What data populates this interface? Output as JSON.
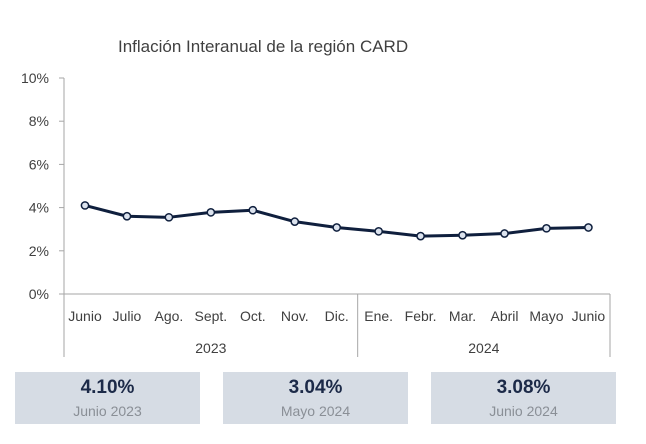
{
  "chart_data": {
    "type": "line",
    "title": "Inflación Interanual de la región CARD",
    "categories": [
      "Junio",
      "Julio",
      "Ago.",
      "Sept.",
      "Oct.",
      "Nov.",
      "Dic.",
      "Ene.",
      "Febr.",
      "Mar.",
      "Abril",
      "Mayo",
      "Junio"
    ],
    "groups": [
      {
        "label": "2023",
        "categories": [
          "Junio",
          "Julio",
          "Ago.",
          "Sept.",
          "Oct.",
          "Nov.",
          "Dic."
        ]
      },
      {
        "label": "2024",
        "categories": [
          "Ene.",
          "Febr.",
          "Mar.",
          "Abril",
          "Mayo",
          "Junio"
        ]
      }
    ],
    "series": [
      {
        "values": [
          4.1,
          3.6,
          3.55,
          3.78,
          3.88,
          3.35,
          3.08,
          2.9,
          2.68,
          2.72,
          2.8,
          3.04,
          3.08
        ]
      }
    ],
    "yticks": [
      "0%",
      "2%",
      "4%",
      "6%",
      "8%",
      "10%"
    ],
    "ylim": [
      0,
      10
    ],
    "grid": false,
    "line_color": "#0f1f3d"
  },
  "cards": [
    {
      "value": "4.10%",
      "label": "Junio 2023"
    },
    {
      "value": "3.04%",
      "label": "Mayo 2024"
    },
    {
      "value": "3.08%",
      "label": "Junio 2024"
    }
  ]
}
